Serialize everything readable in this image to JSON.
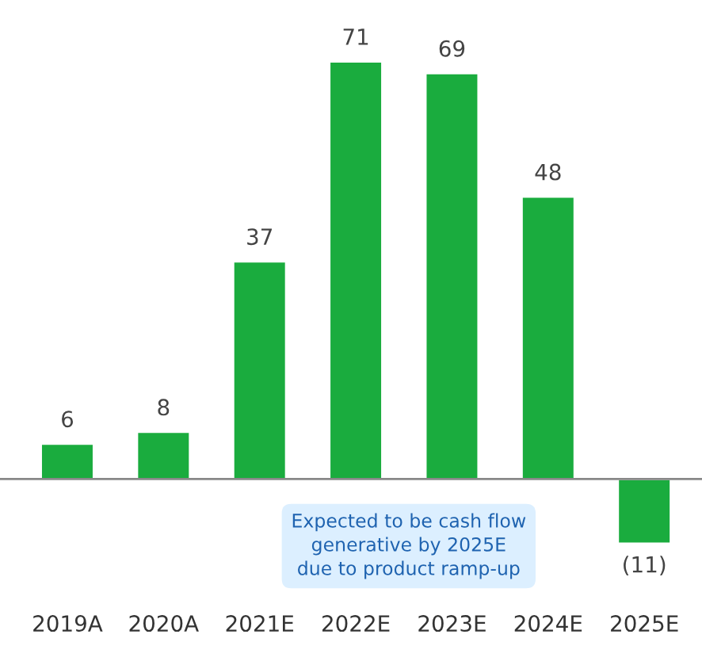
{
  "chart_data": {
    "type": "bar",
    "categories": [
      "2019A",
      "2020A",
      "2021E",
      "2022E",
      "2023E",
      "2024E",
      "2025E"
    ],
    "values": [
      6,
      8,
      37,
      71,
      69,
      48,
      -11
    ],
    "value_labels": [
      "6",
      "8",
      "37",
      "71",
      "69",
      "48",
      "(11)"
    ],
    "color": "#1aac3e",
    "annotations": [
      "Expected to be cash flow\ngenerative by 2025E\ndue to product ramp-up"
    ],
    "grid": false,
    "legend": false
  }
}
